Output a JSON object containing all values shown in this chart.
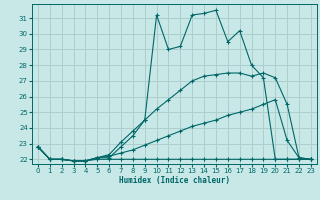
{
  "xlabel": "Humidex (Indice chaleur)",
  "background_color": "#c8e8e8",
  "grid_color": "#aecece",
  "line_color": "#006666",
  "xlim": [
    -0.5,
    23.5
  ],
  "ylim": [
    21.7,
    31.9
  ],
  "yticks": [
    22,
    23,
    24,
    25,
    26,
    27,
    28,
    29,
    30,
    31
  ],
  "xticks": [
    0,
    1,
    2,
    3,
    4,
    5,
    6,
    7,
    8,
    9,
    10,
    11,
    12,
    13,
    14,
    15,
    16,
    17,
    18,
    19,
    20,
    21,
    22,
    23
  ],
  "series": [
    {
      "x": [
        0,
        1,
        2,
        3,
        4,
        5,
        6,
        7,
        8,
        9,
        10,
        11,
        12,
        13,
        14,
        15,
        16,
        17,
        18,
        19,
        20,
        21,
        22,
        23
      ],
      "y": [
        22.8,
        22.0,
        22.0,
        21.9,
        21.9,
        22.1,
        22.1,
        22.8,
        23.5,
        24.5,
        31.2,
        29.0,
        29.2,
        31.2,
        31.3,
        31.5,
        29.5,
        30.2,
        28.0,
        27.2,
        22.0,
        22.0,
        22.0,
        22.0
      ]
    },
    {
      "x": [
        0,
        1,
        2,
        3,
        4,
        5,
        6,
        7,
        8,
        9,
        10,
        11,
        12,
        13,
        14,
        15,
        16,
        17,
        18,
        19,
        20,
        21,
        22,
        23
      ],
      "y": [
        22.8,
        22.0,
        22.0,
        21.9,
        21.9,
        22.1,
        22.3,
        23.1,
        23.8,
        24.5,
        25.2,
        25.8,
        26.4,
        27.0,
        27.3,
        27.4,
        27.5,
        27.5,
        27.3,
        27.5,
        27.2,
        25.5,
        22.1,
        22.0
      ]
    },
    {
      "x": [
        0,
        1,
        2,
        3,
        4,
        5,
        6,
        7,
        8,
        9,
        10,
        11,
        12,
        13,
        14,
        15,
        16,
        17,
        18,
        19,
        20,
        21,
        22,
        23
      ],
      "y": [
        22.8,
        22.0,
        22.0,
        21.9,
        21.9,
        22.1,
        22.2,
        22.4,
        22.6,
        22.9,
        23.2,
        23.5,
        23.8,
        24.1,
        24.3,
        24.5,
        24.8,
        25.0,
        25.2,
        25.5,
        25.8,
        23.2,
        22.1,
        22.0
      ]
    },
    {
      "x": [
        0,
        1,
        2,
        3,
        4,
        5,
        6,
        7,
        8,
        9,
        10,
        11,
        12,
        13,
        14,
        15,
        16,
        17,
        18,
        19,
        20,
        21,
        22,
        23
      ],
      "y": [
        22.8,
        22.0,
        22.0,
        21.9,
        21.9,
        22.0,
        22.0,
        22.0,
        22.0,
        22.0,
        22.0,
        22.0,
        22.0,
        22.0,
        22.0,
        22.0,
        22.0,
        22.0,
        22.0,
        22.0,
        22.0,
        22.0,
        22.0,
        22.0
      ]
    }
  ]
}
